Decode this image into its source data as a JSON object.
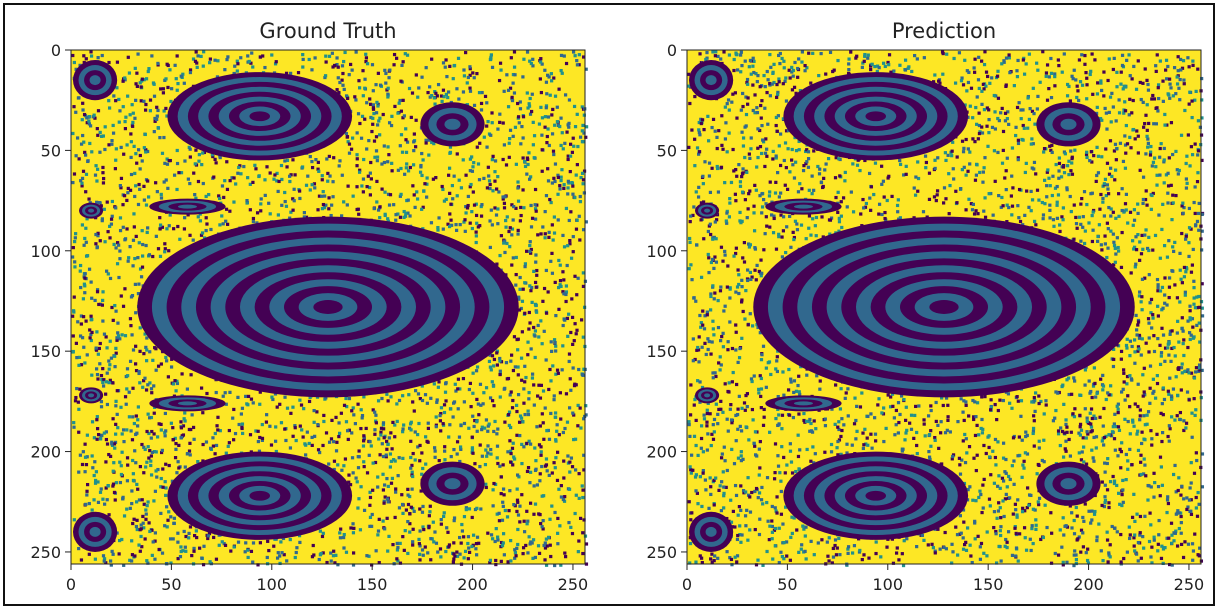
{
  "chart_data": [
    {
      "type": "heatmap",
      "title": "Ground Truth",
      "xlabel": "",
      "ylabel": "",
      "xlim": [
        0,
        256
      ],
      "ylim": [
        256,
        0
      ],
      "x_ticks": [
        0,
        50,
        100,
        150,
        200,
        250
      ],
      "y_ticks": [
        0,
        50,
        100,
        150,
        200,
        250
      ],
      "colormap": "viridis",
      "grid": false,
      "colors": {
        "low": "#440154",
        "mid": "#31688e",
        "teal": "#21918c",
        "high": "#fde725"
      },
      "islands": [
        {
          "cx": 128,
          "cy": 128,
          "rx": 95,
          "ry": 45
        },
        {
          "cx": 94,
          "cy": 33,
          "rx": 46,
          "ry": 22
        },
        {
          "cx": 94,
          "cy": 222,
          "rx": 46,
          "ry": 22
        },
        {
          "cx": 12,
          "cy": 15,
          "rx": 11,
          "ry": 10
        },
        {
          "cx": 12,
          "cy": 240,
          "rx": 11,
          "ry": 10
        },
        {
          "cx": 190,
          "cy": 37,
          "rx": 16,
          "ry": 11
        },
        {
          "cx": 190,
          "cy": 216,
          "rx": 16,
          "ry": 11
        },
        {
          "cx": 58,
          "cy": 78,
          "rx": 19,
          "ry": 4
        },
        {
          "cx": 58,
          "cy": 176,
          "rx": 19,
          "ry": 4
        },
        {
          "cx": 10,
          "cy": 80,
          "rx": 6,
          "ry": 4
        },
        {
          "cx": 10,
          "cy": 172,
          "rx": 6,
          "ry": 4
        }
      ]
    },
    {
      "type": "heatmap",
      "title": "Prediction",
      "xlabel": "",
      "ylabel": "",
      "xlim": [
        0,
        256
      ],
      "ylim": [
        256,
        0
      ],
      "x_ticks": [
        0,
        50,
        100,
        150,
        200,
        250
      ],
      "y_ticks": [
        0,
        50,
        100,
        150,
        200,
        250
      ],
      "colormap": "viridis",
      "grid": false,
      "colors": {
        "low": "#440154",
        "mid": "#31688e",
        "teal": "#21918c",
        "high": "#fde725"
      },
      "islands": [
        {
          "cx": 128,
          "cy": 128,
          "rx": 95,
          "ry": 45
        },
        {
          "cx": 94,
          "cy": 33,
          "rx": 46,
          "ry": 22
        },
        {
          "cx": 94,
          "cy": 222,
          "rx": 46,
          "ry": 22
        },
        {
          "cx": 12,
          "cy": 15,
          "rx": 11,
          "ry": 10
        },
        {
          "cx": 12,
          "cy": 240,
          "rx": 11,
          "ry": 10
        },
        {
          "cx": 190,
          "cy": 37,
          "rx": 16,
          "ry": 11
        },
        {
          "cx": 190,
          "cy": 216,
          "rx": 16,
          "ry": 11
        },
        {
          "cx": 58,
          "cy": 78,
          "rx": 19,
          "ry": 4
        },
        {
          "cx": 58,
          "cy": 176,
          "rx": 19,
          "ry": 4
        },
        {
          "cx": 10,
          "cy": 80,
          "rx": 6,
          "ry": 4
        },
        {
          "cx": 10,
          "cy": 172,
          "rx": 6,
          "ry": 4
        }
      ]
    }
  ]
}
